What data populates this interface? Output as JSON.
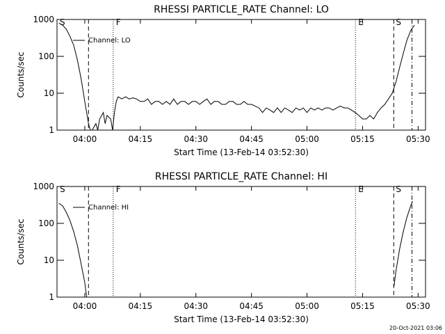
{
  "chart_data": [
    {
      "type": "line",
      "title": "RHESSI PARTICLE_RATE Channel: LO",
      "xlabel": "Start Time (13-Feb-14 03:52:30)",
      "ylabel": "Counts/sec",
      "xlim": [
        "03:52:30",
        "05:32:00"
      ],
      "xticks": [
        "04:00",
        "04:15",
        "04:30",
        "04:45",
        "05:00",
        "05:15",
        "05:30"
      ],
      "ylim": [
        1,
        1000
      ],
      "yticks": [
        1,
        10,
        100,
        1000
      ],
      "log_y": true,
      "grid": false,
      "legend": "top-left",
      "vlines": [
        {
          "x": "04:01:00",
          "style": "dashed"
        },
        {
          "x": "04:07:40",
          "style": "dotted"
        },
        {
          "x": "05:13:05",
          "style": "dotted"
        },
        {
          "x": "05:23:25",
          "style": "dashed"
        },
        {
          "x": "05:28:20",
          "style": "dashdot"
        }
      ],
      "flags": [
        {
          "x": "03:53:15",
          "label": "S"
        },
        {
          "x": "04:08:25",
          "label": "F"
        },
        {
          "x": "05:13:50",
          "label": "E"
        },
        {
          "x": "05:24:00",
          "label": "S"
        }
      ],
      "series": [
        {
          "name": "Channel: LO",
          "color": "#000000",
          "x": [
            "03:53",
            "03:54",
            "03:55",
            "03:56",
            "03:57",
            "03:58",
            "03:59",
            "04:00",
            "04:00:30",
            "04:01",
            "04:01:30",
            "04:02",
            "04:03",
            "04:03:30",
            "04:04",
            "04:05",
            "04:05:30",
            "04:06",
            "04:07",
            "04:07:30",
            "04:08",
            "04:08:30",
            "04:09",
            "04:10",
            "04:11",
            "04:12",
            "04:13",
            "04:14",
            "04:15",
            "04:16",
            "04:17",
            "04:18",
            "04:19",
            "04:20",
            "04:21",
            "04:22",
            "04:23",
            "04:24",
            "04:25",
            "04:26",
            "04:27",
            "04:28",
            "04:29",
            "04:30",
            "04:31",
            "04:32",
            "04:33",
            "04:34",
            "04:35",
            "04:36",
            "04:37",
            "04:38",
            "04:39",
            "04:40",
            "04:41",
            "04:42",
            "04:43",
            "04:44",
            "04:45",
            "04:46",
            "04:47",
            "04:48",
            "04:49",
            "04:50",
            "04:51",
            "04:52",
            "04:53",
            "04:54",
            "04:55",
            "04:56",
            "04:57",
            "04:58",
            "04:59",
            "05:00",
            "05:01",
            "05:02",
            "05:03",
            "05:04",
            "05:05",
            "05:06",
            "05:07",
            "05:08",
            "05:09",
            "05:10",
            "05:11",
            "05:12",
            "05:13",
            "05:14",
            "05:15",
            "05:16",
            "05:17",
            "05:18",
            "05:19",
            "05:20",
            "05:21",
            "05:22",
            "05:23",
            "05:24",
            "05:25",
            "05:26",
            "05:27",
            "05:28",
            "05:29"
          ],
          "values": [
            800,
            700,
            550,
            350,
            200,
            80,
            25,
            6,
            3,
            1.5,
            1,
            1,
            1.5,
            1,
            2,
            3,
            1.5,
            2.5,
            2,
            1,
            3,
            6,
            8,
            7,
            8,
            7,
            7.5,
            7,
            6,
            6,
            7,
            5,
            6,
            6,
            5,
            6,
            5,
            7,
            5,
            6,
            6,
            5,
            6,
            6,
            5,
            6,
            7,
            5,
            6,
            6,
            5,
            5,
            6,
            6,
            5,
            5,
            6,
            5,
            5,
            4.5,
            4,
            3,
            4,
            3.5,
            3,
            4,
            3,
            4,
            3.5,
            3,
            4,
            3.5,
            4,
            3,
            4,
            3.5,
            4,
            3.5,
            4,
            4,
            3.5,
            4,
            4.5,
            4,
            4,
            3.5,
            3,
            2.5,
            2,
            2,
            2.5,
            2,
            3,
            4,
            5,
            7,
            10,
            20,
            50,
            120,
            280,
            500,
            700
          ]
        }
      ]
    },
    {
      "type": "line",
      "title": "RHESSI PARTICLE_RATE Channel: HI",
      "xlabel": "Start Time (13-Feb-14 03:52:30)",
      "ylabel": "Counts/sec",
      "xlim": [
        "03:52:30",
        "05:32:00"
      ],
      "xticks": [
        "04:00",
        "04:15",
        "04:30",
        "04:45",
        "05:00",
        "05:15",
        "05:30"
      ],
      "ylim": [
        1,
        1000
      ],
      "yticks": [
        1,
        10,
        100,
        1000
      ],
      "log_y": true,
      "grid": false,
      "legend": "top-left",
      "vlines": [
        {
          "x": "04:01:00",
          "style": "dashed"
        },
        {
          "x": "04:07:40",
          "style": "dotted"
        },
        {
          "x": "05:13:05",
          "style": "dotted"
        },
        {
          "x": "05:23:25",
          "style": "dashed"
        },
        {
          "x": "05:28:20",
          "style": "dashdot"
        }
      ],
      "flags": [
        {
          "x": "03:53:15",
          "label": "S"
        },
        {
          "x": "04:08:25",
          "label": "F"
        },
        {
          "x": "05:13:50",
          "label": "E"
        },
        {
          "x": "05:24:00",
          "label": "S"
        }
      ],
      "series": [
        {
          "name": "Channel: HI",
          "color": "#000000",
          "x": [
            "03:53",
            "03:54",
            "03:55",
            "03:56",
            "03:57",
            "03:58",
            "03:59",
            "04:00",
            "04:00:30",
            "04:30",
            "05:23:30",
            "05:24",
            "05:25",
            "05:26",
            "05:27",
            "05:28",
            "05:28:30"
          ],
          "values": [
            350,
            300,
            200,
            120,
            60,
            25,
            8,
            2.5,
            1,
            null,
            2,
            5,
            20,
            60,
            150,
            300,
            400
          ]
        }
      ]
    }
  ],
  "footer": "20-Oct-2021 03:06"
}
